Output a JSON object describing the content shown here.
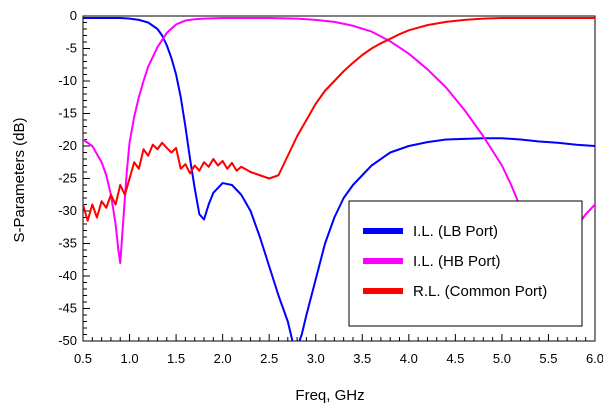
{
  "chart_data": {
    "type": "line",
    "title": "",
    "xlabel": "Freq, GHz",
    "ylabel": "S-Parameters (dB)",
    "xlim": [
      0.5,
      6.0
    ],
    "ylim": [
      -50,
      0
    ],
    "xticks": [
      0.5,
      1.0,
      1.5,
      2.0,
      2.5,
      3.0,
      3.5,
      4.0,
      4.5,
      5.0,
      5.5,
      6.0
    ],
    "yticks": [
      0,
      -5,
      -10,
      -15,
      -20,
      -25,
      -30,
      -35,
      -40,
      -45,
      -50
    ],
    "xtick_labels": [
      "0.5",
      "1.0",
      "1.5",
      "2.0",
      "2.5",
      "3.0",
      "3.5",
      "4.0",
      "4.5",
      "5.0",
      "5.5",
      "6.0"
    ],
    "ytick_labels": [
      "0",
      "-5",
      "-10",
      "-15",
      "-20",
      "-25",
      "-30",
      "-35",
      "-40",
      "-45",
      "-50"
    ],
    "grid": false,
    "legend_position": "bottom-right",
    "series": [
      {
        "name": "I.L.   (LB Port)",
        "color": "#0000ff",
        "x": [
          0.5,
          0.7,
          0.9,
          1.0,
          1.1,
          1.2,
          1.3,
          1.35,
          1.4,
          1.45,
          1.5,
          1.55,
          1.6,
          1.65,
          1.7,
          1.75,
          1.8,
          1.85,
          1.9,
          2.0,
          2.1,
          2.2,
          2.3,
          2.4,
          2.5,
          2.6,
          2.7,
          2.75,
          2.8,
          2.85,
          2.9,
          3.0,
          3.1,
          3.2,
          3.3,
          3.4,
          3.5,
          3.6,
          3.8,
          4.0,
          4.2,
          4.4,
          4.6,
          4.8,
          5.0,
          5.2,
          5.4,
          5.6,
          5.8,
          6.0
        ],
        "y": [
          -0.3,
          -0.3,
          -0.3,
          -0.4,
          -0.6,
          -1.0,
          -2.0,
          -3.0,
          -4.5,
          -6.5,
          -9.0,
          -12.5,
          -17.0,
          -22.0,
          -26.5,
          -30.5,
          -31.3,
          -29.0,
          -27.2,
          -25.7,
          -26.0,
          -27.5,
          -30.0,
          -34.0,
          -38.5,
          -43.0,
          -47.0,
          -50.0,
          -51.0,
          -49.0,
          -46.0,
          -40.5,
          -35.0,
          -31.0,
          -28.0,
          -26.0,
          -24.5,
          -23.0,
          -21.0,
          -20.0,
          -19.4,
          -19.0,
          -18.9,
          -18.8,
          -18.8,
          -19.0,
          -19.3,
          -19.5,
          -19.8,
          -20.0
        ]
      },
      {
        "name": "I.L.   (HB Port)",
        "color": "#ff00ff",
        "x": [
          0.5,
          0.6,
          0.7,
          0.75,
          0.8,
          0.85,
          0.88,
          0.9,
          0.93,
          0.97,
          1.0,
          1.05,
          1.1,
          1.15,
          1.2,
          1.3,
          1.4,
          1.5,
          1.6,
          1.7,
          1.8,
          2.0,
          2.2,
          2.5,
          2.8,
          3.0,
          3.2,
          3.4,
          3.6,
          3.8,
          4.0,
          4.2,
          4.4,
          4.6,
          4.8,
          5.0,
          5.1,
          5.2,
          5.3,
          5.4,
          5.45,
          5.5,
          5.55,
          5.6,
          5.7,
          5.8,
          5.9,
          6.0
        ],
        "y": [
          -19.0,
          -20.0,
          -22.5,
          -24.5,
          -27.5,
          -32.0,
          -36.0,
          -38.0,
          -32.0,
          -24.0,
          -19.5,
          -15.5,
          -12.5,
          -10.0,
          -7.8,
          -4.8,
          -2.6,
          -1.3,
          -0.7,
          -0.5,
          -0.4,
          -0.3,
          -0.3,
          -0.3,
          -0.4,
          -0.6,
          -0.9,
          -1.5,
          -2.4,
          -3.9,
          -5.8,
          -8.2,
          -11.0,
          -14.5,
          -18.5,
          -23.0,
          -26.0,
          -29.5,
          -34.0,
          -39.5,
          -42.5,
          -43.5,
          -41.5,
          -38.0,
          -35.0,
          -32.5,
          -30.5,
          -29.0
        ]
      },
      {
        "name": "R.L. (Common Port)",
        "color": "#ff0000",
        "x": [
          0.5,
          0.55,
          0.6,
          0.65,
          0.7,
          0.75,
          0.8,
          0.85,
          0.9,
          0.95,
          1.0,
          1.05,
          1.1,
          1.15,
          1.2,
          1.25,
          1.3,
          1.35,
          1.4,
          1.45,
          1.5,
          1.55,
          1.6,
          1.65,
          1.7,
          1.75,
          1.8,
          1.85,
          1.9,
          1.95,
          2.0,
          2.05,
          2.1,
          2.15,
          2.2,
          2.3,
          2.4,
          2.5,
          2.6,
          2.7,
          2.8,
          2.9,
          3.0,
          3.1,
          3.2,
          3.3,
          3.4,
          3.5,
          3.6,
          3.7,
          3.8,
          3.9,
          4.0,
          4.1,
          4.2,
          4.4,
          4.6,
          4.8,
          5.0,
          5.2,
          5.5,
          5.8,
          6.0
        ],
        "y": [
          -29.0,
          -31.5,
          -29.0,
          -31.0,
          -28.5,
          -29.5,
          -27.5,
          -29.0,
          -26.0,
          -27.5,
          -25.0,
          -22.5,
          -23.5,
          -20.5,
          -21.5,
          -19.8,
          -20.5,
          -19.5,
          -20.3,
          -21.0,
          -20.3,
          -23.5,
          -22.8,
          -24.2,
          -23.0,
          -23.8,
          -22.5,
          -23.2,
          -22.0,
          -23.0,
          -22.3,
          -23.5,
          -22.6,
          -23.8,
          -23.2,
          -24.0,
          -24.5,
          -25.0,
          -24.5,
          -21.5,
          -18.5,
          -16.0,
          -13.5,
          -11.5,
          -10.0,
          -8.5,
          -7.2,
          -6.0,
          -5.0,
          -4.2,
          -3.5,
          -2.8,
          -2.2,
          -1.8,
          -1.4,
          -0.9,
          -0.6,
          -0.4,
          -0.3,
          -0.3,
          -0.3,
          -0.3,
          -0.3
        ]
      }
    ]
  }
}
